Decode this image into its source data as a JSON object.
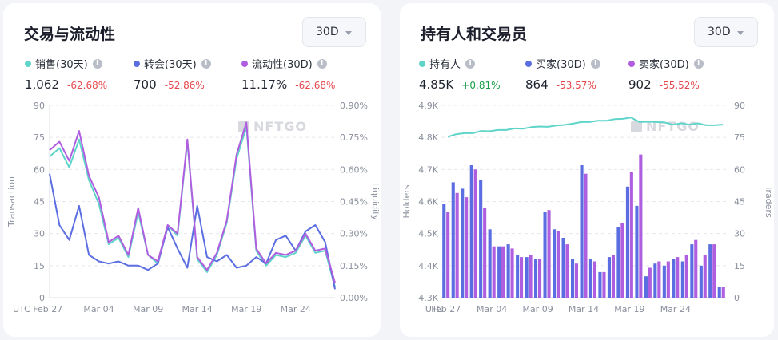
{
  "watermark": "NFTGO",
  "chart_data": [
    {
      "type": "line",
      "title": "交易与流动性",
      "period": "30D",
      "stats": [
        {
          "label": "销售(30天)",
          "value": "1,062",
          "change": "-62.68%",
          "color": "#5fd4c9"
        },
        {
          "label": "转会(30天)",
          "value": "700",
          "change": "-52.86%",
          "color": "#5b6ee1"
        },
        {
          "label": "流动性(30D)",
          "value": "11.17%",
          "change": "-62.68%",
          "color": "#b05ee0"
        }
      ],
      "ylabel": "Transaction",
      "y2label": "Liquidity",
      "ylim": [
        0,
        90
      ],
      "y2lim": [
        0,
        0.9
      ],
      "yticks": [
        "0",
        "15",
        "30",
        "45",
        "60",
        "75",
        "90"
      ],
      "y2ticks": [
        "0.00%",
        "0.15%",
        "0.30%",
        "0.45%",
        "0.60%",
        "0.75%",
        "0.90%"
      ],
      "x_ticks": [
        {
          "label": "UTC Feb 27",
          "day": 0
        },
        {
          "label": "Mar 04",
          "day": 5
        },
        {
          "label": "Mar 09",
          "day": 10
        },
        {
          "label": "Mar 14",
          "day": 15
        },
        {
          "label": "Mar 19",
          "day": 20
        },
        {
          "label": "Mar 24",
          "day": 25
        }
      ],
      "series": [
        {
          "name": "销售(30天)",
          "axis": "left",
          "color": "#5fd4c9",
          "values": [
            66,
            70,
            61,
            74,
            55,
            44,
            25,
            28,
            19,
            40,
            20,
            16,
            34,
            29,
            73,
            18,
            12,
            20,
            35,
            65,
            80,
            22,
            15,
            20,
            19,
            21,
            29,
            21,
            22,
            5
          ]
        },
        {
          "name": "转会(30天)",
          "axis": "left",
          "color": "#5b6ee1",
          "values": [
            58,
            34,
            27,
            43,
            20,
            17,
            16,
            17,
            15,
            15,
            13,
            16,
            33,
            23,
            14,
            43,
            19,
            17,
            20,
            14,
            15,
            19,
            16,
            27,
            29,
            22,
            31,
            34,
            26,
            4
          ]
        },
        {
          "name": "流动性(30D)",
          "axis": "right",
          "color": "#b05ee0",
          "values": [
            0.69,
            0.73,
            0.64,
            0.78,
            0.57,
            0.47,
            0.26,
            0.29,
            0.2,
            0.42,
            0.2,
            0.17,
            0.34,
            0.3,
            0.74,
            0.19,
            0.13,
            0.21,
            0.36,
            0.67,
            0.82,
            0.23,
            0.16,
            0.21,
            0.2,
            0.22,
            0.3,
            0.22,
            0.23,
            0.07
          ]
        }
      ]
    },
    {
      "type": "bar",
      "title": "持有人和交易员",
      "period": "30D",
      "stats": [
        {
          "label": "持有人",
          "value": "4.85K",
          "change": "+0.81%",
          "color": "#5fd4c9"
        },
        {
          "label": "买家(30D)",
          "value": "864",
          "change": "-53.57%",
          "color": "#5b6ee1"
        },
        {
          "label": "卖家(30D)",
          "value": "902",
          "change": "-55.52%",
          "color": "#b05ee0"
        }
      ],
      "ylabel": "Holders",
      "y2label": "Traders",
      "ylim": [
        4300,
        4900
      ],
      "y2lim": [
        0,
        90
      ],
      "yticks": [
        "4.3K",
        "4.4K",
        "4.5K",
        "4.6K",
        "4.7K",
        "4.8K",
        "4.9K"
      ],
      "y2ticks": [
        "0",
        "15",
        "30",
        "45",
        "60",
        "75",
        "90"
      ],
      "x_ticks": [
        {
          "label": "UTC",
          "day": -1.3
        },
        {
          "label": "Feb 27",
          "day": 0
        },
        {
          "label": "Mar 04",
          "day": 5
        },
        {
          "label": "Mar 09",
          "day": 10
        },
        {
          "label": "Mar 14",
          "day": 15
        },
        {
          "label": "Mar 19",
          "day": 20
        },
        {
          "label": "Mar 24",
          "day": 25
        }
      ],
      "holders": {
        "name": "持有人",
        "color": "#5fd4c9",
        "values": [
          4802,
          4810,
          4813,
          4813,
          4820,
          4819,
          4823,
          4823,
          4828,
          4827,
          4832,
          4834,
          4833,
          4837,
          4839,
          4843,
          4848,
          4848,
          4852,
          4852,
          4857,
          4858,
          4862,
          4848,
          4849,
          4848,
          4847,
          4840,
          4844,
          4840,
          4844,
          4838,
          4838,
          4840
        ]
      },
      "buyers": {
        "name": "买家(30D)",
        "color": "#5b6ee1",
        "values": [
          44,
          54,
          51,
          62,
          55,
          32,
          24,
          25,
          20,
          19,
          18,
          40,
          32,
          28,
          18,
          62,
          18,
          12,
          19,
          33,
          52,
          43,
          10,
          16,
          15,
          18,
          17,
          25,
          15,
          25,
          5
        ]
      },
      "sellers": {
        "name": "卖家(30D)",
        "color": "#b05ee0",
        "values": [
          40,
          49,
          47,
          60,
          42,
          24,
          24,
          23,
          19,
          20,
          18,
          41,
          31,
          25,
          16,
          58,
          17,
          12,
          20,
          35,
          59,
          67,
          14,
          17,
          17,
          19,
          20,
          27,
          20,
          25,
          5
        ]
      }
    }
  ]
}
